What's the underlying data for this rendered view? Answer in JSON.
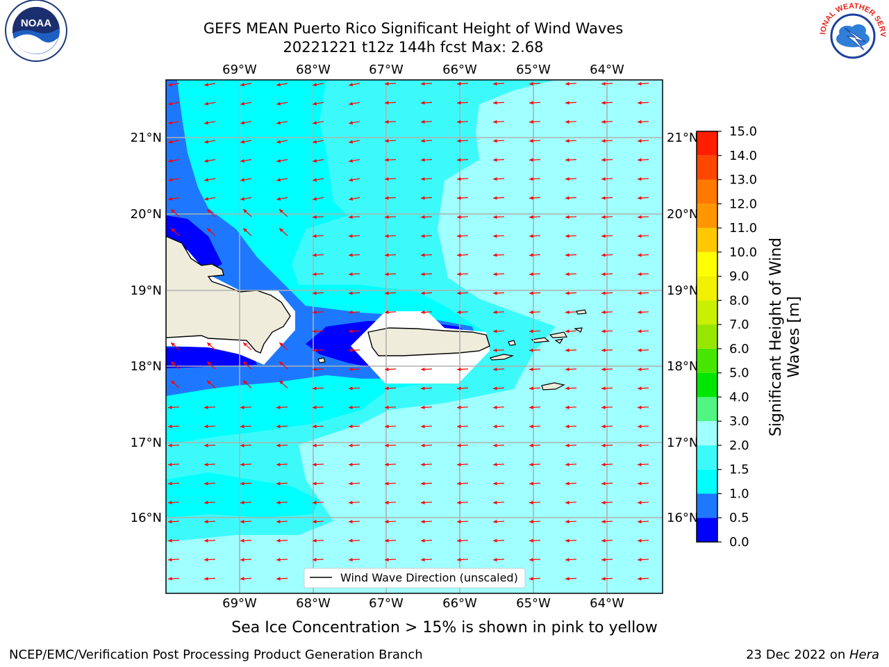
{
  "title_line1": "GEFS MEAN Puerto Rico Significant Height of Wind Waves",
  "title_line2": "20221221 t12z 144h fcst   Max: 2.68",
  "logos": {
    "left": "NOAA",
    "right": "NATIONAL WEATHER SERVICE"
  },
  "map": {
    "lon_labels": [
      "69°W",
      "68°W",
      "67°W",
      "66°W",
      "65°W",
      "64°W"
    ],
    "lat_labels": [
      "21°N",
      "20°N",
      "19°N",
      "18°N",
      "17°N",
      "16°N"
    ],
    "legend_label": "Wind Wave Direction (unscaled)",
    "arrow_color": "#ff0000",
    "land_color": "#efecdc"
  },
  "colorbar": {
    "label": "Significant Height of Wind Waves [m]",
    "ticks": [
      "0.0",
      "0.5",
      "1.0",
      "1.5",
      "2.0",
      "3.0",
      "4.0",
      "5.0",
      "6.0",
      "7.0",
      "8.0",
      "9.0",
      "10.0",
      "11.0",
      "12.0",
      "13.0",
      "14.0",
      "15.0"
    ],
    "colors": [
      "#0000ff",
      "#1e78ff",
      "#00ffff",
      "#3cfafa",
      "#a0ffff",
      "#50f582",
      "#00e600",
      "#46e600",
      "#96e600",
      "#c8f000",
      "#f0f000",
      "#ffff00",
      "#ffc800",
      "#ff9600",
      "#ff7800",
      "#ff4600",
      "#ff1e00",
      "#ff0000"
    ]
  },
  "ice_note": "Sea Ice Concentration > 15% is shown in pink to yellow",
  "footer_left": "NCEP/EMC/Verification Post Processing Product Generation Branch",
  "footer_right_prefix": "23 Dec 2022 on ",
  "footer_right_host": "Hera"
}
